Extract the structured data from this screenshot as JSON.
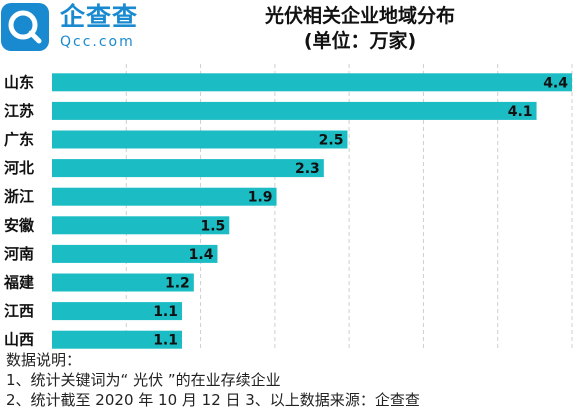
{
  "logo": {
    "name_cn": "企查查",
    "name_en": "Qcc.com"
  },
  "header": {
    "title": "光伏相关企业地域分布",
    "subtitle": "(单位：万家)"
  },
  "chart_data": {
    "type": "bar",
    "orientation": "horizontal",
    "title": "光伏相关企业地域分布",
    "subtitle": "(单位：万家)",
    "categories": [
      "山东",
      "江苏",
      "广东",
      "河北",
      "浙江",
      "安徽",
      "河南",
      "福建",
      "江西",
      "山西"
    ],
    "values": [
      4.4,
      4.1,
      2.5,
      2.3,
      1.9,
      1.5,
      1.4,
      1.2,
      1.1,
      1.1
    ],
    "xlim": [
      0,
      4.4
    ],
    "grid": true,
    "bar_color": "#1bbcc4"
  },
  "notes": {
    "heading": "数据说明：",
    "line1": "1、统计关键词为“ 光伏 ”的在业存续企业",
    "line2": "2、统计截至 2020 年 10 月 12 日 3、以上数据来源：企查查"
  },
  "colors": {
    "bar": "#1bbcc4",
    "brand": "#1a8ad0"
  }
}
